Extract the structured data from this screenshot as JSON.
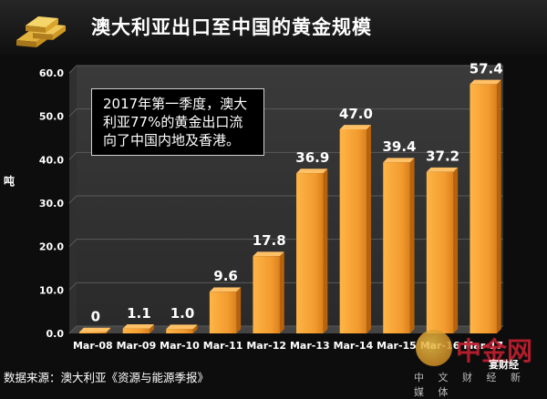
{
  "header": {
    "title": "澳大利亚出口至中国的黄金规模"
  },
  "callout": {
    "text": "2017年第一季度，澳大利亚77%的黄金出口流向了中国内地及香港。"
  },
  "source": {
    "text": "数据来源：澳大利亚《资源与能源季报》"
  },
  "watermark": {
    "brand": "中金网",
    "sub": "中 文 财 经 新 媒 体",
    "tag": "宴财经"
  },
  "colors": {
    "bar": "#f29a2e",
    "bar_dark": "#b8630c",
    "grid": "#5a5a5a",
    "axis_text": "#ffffff"
  },
  "chart_data": {
    "type": "bar",
    "title": "澳大利亚出口至中国的黄金规模",
    "xlabel": "",
    "ylabel": "吨",
    "ylim": [
      0,
      60
    ],
    "yticks": [
      "0.0",
      "10.0",
      "20.0",
      "30.0",
      "40.0",
      "50.0",
      "60.0"
    ],
    "categories": [
      "Mar-08",
      "Mar-09",
      "Mar-10",
      "Mar-11",
      "Mar-12",
      "Mar-13",
      "Mar-14",
      "Mar-15",
      "Mar-16",
      "Mar-17"
    ],
    "values": [
      0,
      1.1,
      1.0,
      9.6,
      17.8,
      36.9,
      47.0,
      39.4,
      37.2,
      57.4
    ],
    "value_labels": [
      "0",
      "1.1",
      "1.0",
      "9.6",
      "17.8",
      "36.9",
      "47.0",
      "39.4",
      "37.2",
      "57.4"
    ],
    "grid": true,
    "legend": "none"
  }
}
